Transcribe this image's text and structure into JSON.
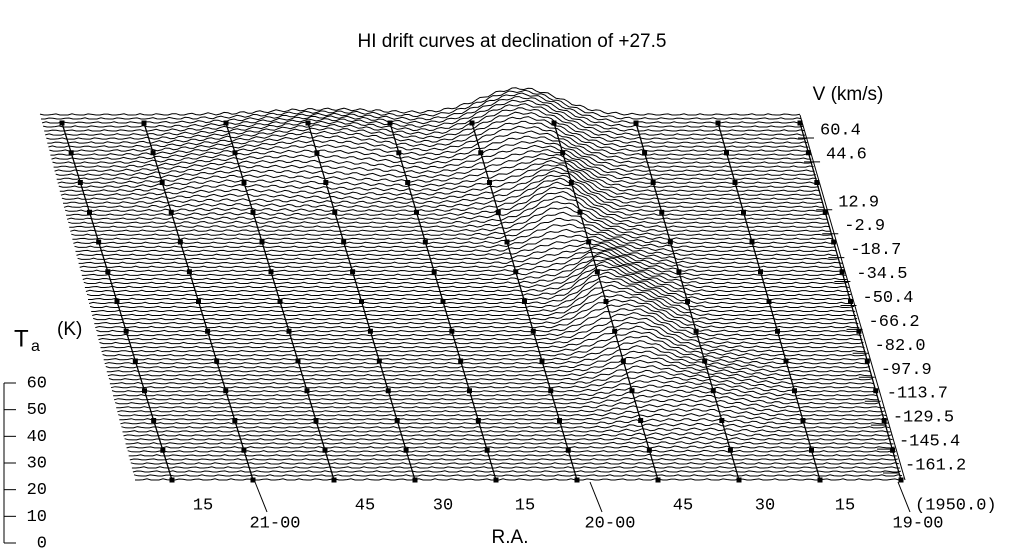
{
  "chart_data": {
    "type": "waterfall",
    "title": "HI drift curves at declination of +27.5",
    "v_label": "V (km/s)",
    "vticks": [
      60.4,
      44.6,
      12.9,
      -2.9,
      -18.7,
      -34.5,
      -50.4,
      -66.2,
      {
        "value": -82.0,
        "label": "-82.0"
      },
      -97.9,
      -113.7,
      -129.5,
      -145.4,
      -161.2
    ],
    "y_label": "T",
    "y_label_sub": "a",
    "y_label_unit": "(K)",
    "ylim": [
      0,
      60
    ],
    "yticks": [
      0,
      10,
      20,
      30,
      40,
      50,
      60
    ],
    "x_label": "R.A.",
    "ra_labels": [
      "15",
      "21-00",
      "45",
      "30",
      "15",
      "20-00",
      "45",
      "30",
      "15",
      "19-00"
    ],
    "epoch": "(1950.0)"
  }
}
